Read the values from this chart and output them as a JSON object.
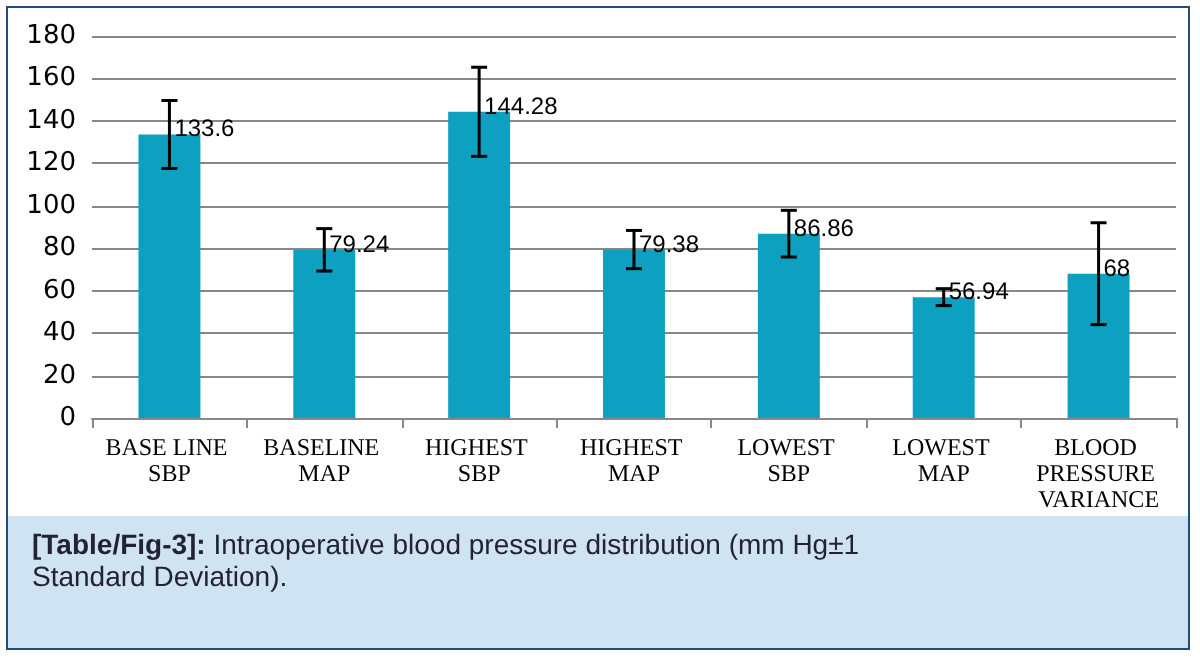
{
  "chart_data": {
    "type": "bar",
    "categories": [
      "BASE LINE SBP",
      "BASELINE MAP",
      "HIGHEST SBP",
      "HIGHEST MAP",
      "LOWEST SBP",
      "LOWEST MAP",
      "BLOOD PRESSURE VARIANCE"
    ],
    "values": [
      133.6,
      79.24,
      144.28,
      79.38,
      86.86,
      56.94,
      68
    ],
    "errors": [
      16,
      10,
      21,
      9,
      11,
      4,
      24
    ],
    "color": "#0ea0c0",
    "data_labels": true,
    "ylim": [
      0,
      180
    ],
    "yticks": [
      0,
      20,
      40,
      60,
      80,
      100,
      120,
      140,
      160,
      180
    ],
    "grid": "y",
    "annotations": [
      "[Table/Fig-3]: Intraoperative blood pressure distribution (mm Hg±1 Standard Deviation)."
    ]
  }
}
